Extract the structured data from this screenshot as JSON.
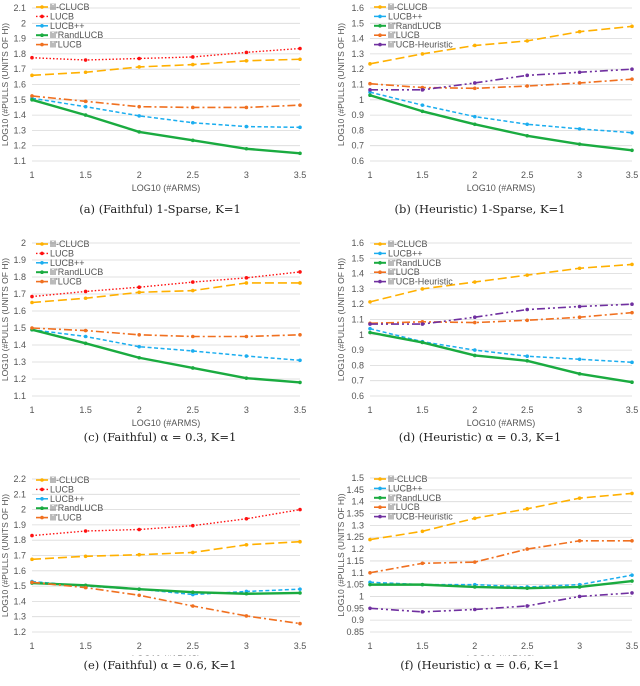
{
  "styles": {
    "lil-CLUCB": {
      "color": "#FFB000",
      "dash": "long-dash",
      "width": 1.6
    },
    "LUCB": {
      "color": "#FF1010",
      "dash": "dot",
      "width": 1.4
    },
    "LUCB++": {
      "color": "#1AADEF",
      "dash": "short-dash",
      "width": 1.5
    },
    "lil'RandLUCB": {
      "color": "#1AAB40",
      "dash": "solid",
      "width": 2.4
    },
    "lil'LUCB": {
      "color": "#F07020",
      "dash": "dash-dot",
      "width": 1.6
    },
    "lil'UCB-Heuristic": {
      "color": "#7030A0",
      "dash": "dash-dot-dot",
      "width": 1.6
    }
  },
  "chart_data": [
    {
      "type": "line",
      "caption": "(a) (Faithful) 1-Sparse, K=1",
      "xlabel": "LOG10 (#ARMS)",
      "ylabel": "LOG10 (#PULLS (UNITS OF H))",
      "x": [
        1,
        1.5,
        2,
        2.5,
        3,
        3.5
      ],
      "xticks": [
        "1",
        "1.5",
        "2",
        "2.5",
        "3",
        "3.5"
      ],
      "ylim": [
        1.1,
        2.1
      ],
      "yticks": [
        "1.1",
        "1.2",
        "1.3",
        "1.4",
        "1.5",
        "1.6",
        "1.7",
        "1.8",
        "1.9",
        "2",
        "2.1"
      ],
      "grid": true,
      "legend": "top-left",
      "series": [
        {
          "name": "lil-CLUCB",
          "values": [
            1.66,
            1.68,
            1.715,
            1.73,
            1.755,
            1.765
          ]
        },
        {
          "name": "LUCB",
          "values": [
            1.775,
            1.76,
            1.77,
            1.78,
            1.81,
            1.835
          ]
        },
        {
          "name": "LUCB++",
          "values": [
            1.51,
            1.455,
            1.395,
            1.35,
            1.325,
            1.32
          ]
        },
        {
          "name": "lil'RandLUCB",
          "values": [
            1.5,
            1.4,
            1.29,
            1.235,
            1.18,
            1.15
          ]
        },
        {
          "name": "lil'LUCB",
          "values": [
            1.525,
            1.49,
            1.455,
            1.45,
            1.45,
            1.465
          ]
        }
      ]
    },
    {
      "type": "line",
      "caption": "(b) (Heuristic) 1-Sparse, K=1",
      "xlabel": "LOG10 (#ARMS)",
      "ylabel": "LOG10 (#PULLS (UNITS OF H))",
      "x": [
        1,
        1.5,
        2,
        2.5,
        3,
        3.5
      ],
      "xticks": [
        "1",
        "1.5",
        "2",
        "2.5",
        "3",
        "3.5"
      ],
      "ylim": [
        0.6,
        1.6
      ],
      "yticks": [
        "0.6",
        "0.7",
        "0.8",
        "0.9",
        "1",
        "1.1",
        "1.2",
        "1.3",
        "1.4",
        "1.5",
        "1.6"
      ],
      "grid": true,
      "legend": "top-left",
      "series": [
        {
          "name": "lil-CLUCB",
          "values": [
            1.235,
            1.3,
            1.355,
            1.385,
            1.445,
            1.48
          ]
        },
        {
          "name": "LUCB++",
          "values": [
            1.05,
            0.965,
            0.89,
            0.84,
            0.81,
            0.785
          ]
        },
        {
          "name": "lil'RandLUCB",
          "values": [
            1.03,
            0.925,
            0.84,
            0.765,
            0.71,
            0.67
          ]
        },
        {
          "name": "lil'LUCB",
          "values": [
            1.105,
            1.08,
            1.075,
            1.09,
            1.11,
            1.135
          ]
        },
        {
          "name": "lil'UCB-Heuristic",
          "values": [
            1.065,
            1.065,
            1.11,
            1.16,
            1.18,
            1.2
          ]
        }
      ]
    },
    {
      "type": "line",
      "caption": "(c) (Faithful) α = 0.3, K=1",
      "xlabel": "LOG10 (#ARMS)",
      "ylabel": "LOG10 (#PULLS (UNITS OF H))",
      "x": [
        1,
        1.5,
        2,
        2.5,
        3,
        3.5
      ],
      "xticks": [
        "1",
        "1.5",
        "2",
        "2.5",
        "3",
        "3.5"
      ],
      "ylim": [
        1.1,
        2.0
      ],
      "yticks": [
        "1.1",
        "1.2",
        "1.3",
        "1.4",
        "1.5",
        "1.6",
        "1.7",
        "1.8",
        "1.9",
        "2"
      ],
      "grid": true,
      "legend": "top-left",
      "series": [
        {
          "name": "lil-CLUCB",
          "values": [
            1.65,
            1.675,
            1.71,
            1.72,
            1.765,
            1.765
          ]
        },
        {
          "name": "LUCB",
          "values": [
            1.685,
            1.715,
            1.74,
            1.77,
            1.795,
            1.83
          ]
        },
        {
          "name": "LUCB++",
          "values": [
            1.49,
            1.45,
            1.39,
            1.365,
            1.335,
            1.31
          ]
        },
        {
          "name": "lil'RandLUCB",
          "values": [
            1.49,
            1.41,
            1.325,
            1.265,
            1.205,
            1.18
          ]
        },
        {
          "name": "lil'LUCB",
          "values": [
            1.5,
            1.485,
            1.46,
            1.45,
            1.45,
            1.46
          ]
        }
      ]
    },
    {
      "type": "line",
      "caption": "(d) (Heuristic) α = 0.3, K=1",
      "xlabel": "LOG10 (#ARMS)",
      "ylabel": "LOG10 (#PULLS (UNITS OF H))",
      "x": [
        1,
        1.5,
        2,
        2.5,
        3,
        3.5
      ],
      "xticks": [
        "1",
        "1.5",
        "2",
        "2.5",
        "3",
        "3.5"
      ],
      "ylim": [
        0.6,
        1.6
      ],
      "yticks": [
        "0.6",
        "0.7",
        "0.8",
        "0.9",
        "1",
        "1.1",
        "1.2",
        "1.3",
        "1.4",
        "1.5",
        "1.6"
      ],
      "grid": true,
      "legend": "top-left",
      "series": [
        {
          "name": "lil-CLUCB",
          "values": [
            1.215,
            1.3,
            1.345,
            1.39,
            1.435,
            1.46
          ]
        },
        {
          "name": "LUCB++",
          "values": [
            1.04,
            0.955,
            0.9,
            0.86,
            0.84,
            0.82
          ]
        },
        {
          "name": "lil'RandLUCB",
          "values": [
            1.015,
            0.95,
            0.865,
            0.83,
            0.745,
            0.69
          ]
        },
        {
          "name": "lil'LUCB",
          "values": [
            1.075,
            1.085,
            1.08,
            1.095,
            1.115,
            1.145
          ]
        },
        {
          "name": "lil'UCB-Heuristic",
          "values": [
            1.07,
            1.07,
            1.115,
            1.165,
            1.185,
            1.2
          ]
        }
      ]
    },
    {
      "type": "line",
      "caption": "(e) (Faithful) α = 0.6, K=1",
      "xlabel": "LOG10 (#ARMS)",
      "ylabel": "LOG10 (#PULLS (UNITS OF H))",
      "x": [
        1,
        1.5,
        2,
        2.5,
        3,
        3.5
      ],
      "xticks": [
        "1",
        "1.5",
        "2",
        "2.5",
        "3",
        "3.5"
      ],
      "ylim": [
        1.2,
        2.2
      ],
      "yticks": [
        "1.2",
        "1.3",
        "1.4",
        "1.5",
        "1.6",
        "1.7",
        "1.8",
        "1.9",
        "2",
        "2.1",
        "2.2"
      ],
      "grid": true,
      "legend": "top-left",
      "series": [
        {
          "name": "lil-CLUCB",
          "values": [
            1.675,
            1.695,
            1.705,
            1.72,
            1.77,
            1.79
          ]
        },
        {
          "name": "LUCB",
          "values": [
            1.83,
            1.86,
            1.87,
            1.895,
            1.94,
            2.0
          ]
        },
        {
          "name": "LUCB++",
          "values": [
            1.53,
            1.5,
            1.48,
            1.445,
            1.465,
            1.48
          ]
        },
        {
          "name": "lil'RandLUCB",
          "values": [
            1.52,
            1.505,
            1.48,
            1.46,
            1.45,
            1.455
          ]
        },
        {
          "name": "lil'LUCB",
          "values": [
            1.525,
            1.49,
            1.44,
            1.37,
            1.305,
            1.255
          ]
        }
      ]
    },
    {
      "type": "line",
      "caption": "(f) (Heuristic) α = 0.6, K=1",
      "xlabel": "LOG10 (#ARMS)",
      "ylabel": "LOG10 (#PULLS (UNITS OF H))",
      "x": [
        1,
        1.5,
        2,
        2.5,
        3,
        3.5
      ],
      "xticks": [
        "1",
        "1.5",
        "2",
        "2.5",
        "3",
        "3.5"
      ],
      "ylim": [
        0.85,
        1.5
      ],
      "yticks": [
        "0.85",
        "0.9",
        "0.95",
        "1",
        "1.05",
        "1.1",
        "1.15",
        "1.2",
        "1.25",
        "1.3",
        "1.35",
        "1.4",
        "1.45",
        "1.5"
      ],
      "grid": true,
      "legend": "top-left",
      "series": [
        {
          "name": "lil-CLUCB",
          "values": [
            1.24,
            1.275,
            1.33,
            1.37,
            1.415,
            1.435
          ]
        },
        {
          "name": "LUCB++",
          "values": [
            1.06,
            1.05,
            1.05,
            1.04,
            1.05,
            1.09
          ]
        },
        {
          "name": "lil'RandLUCB",
          "values": [
            1.05,
            1.05,
            1.04,
            1.035,
            1.04,
            1.065
          ]
        },
        {
          "name": "lil'LUCB",
          "values": [
            1.1,
            1.14,
            1.145,
            1.2,
            1.235,
            1.235
          ]
        },
        {
          "name": "lil'UCB-Heuristic",
          "values": [
            0.95,
            0.935,
            0.945,
            0.96,
            1.0,
            1.015
          ]
        }
      ]
    }
  ]
}
